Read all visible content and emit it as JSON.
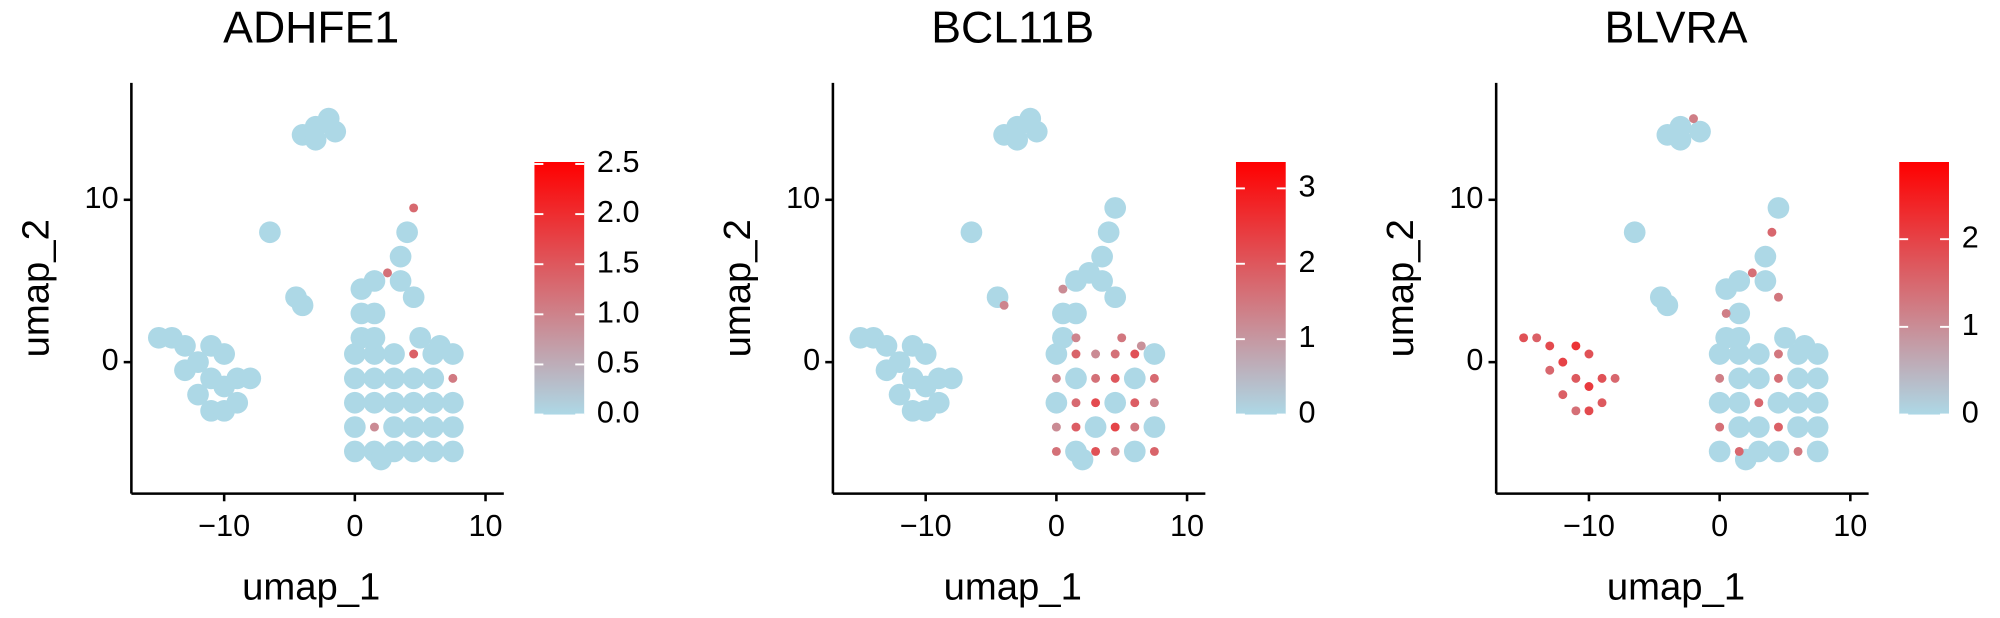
{
  "chart_data": [
    {
      "type": "scatter",
      "title": "ADHFE1",
      "x_label": "umap_1",
      "y_label": "umap_2",
      "xlim": [
        -17.1,
        11.4
      ],
      "ylim": [
        -8.1,
        17.2
      ],
      "xticks": [
        {
          "value": -10,
          "label": "−10"
        },
        0,
        10
      ],
      "yticks": [
        0,
        10
      ],
      "clim": [
        0,
        2.52
      ],
      "cticks": [
        {
          "value": 0,
          "label": "0.0"
        },
        {
          "value": 0.5,
          "label": "0.5"
        },
        {
          "value": 1,
          "label": "1.0"
        },
        {
          "value": 1.5,
          "label": "1.5"
        },
        {
          "value": 2,
          "label": "2.0"
        },
        {
          "value": 2.5,
          "label": "2.5"
        }
      ],
      "colors": [
        "#add8e6",
        "#ff0000"
      ],
      "x": [
        0,
        1.5,
        3,
        4.5,
        6,
        7.5,
        0,
        1.5,
        3,
        4.5,
        6,
        7.5,
        0,
        1.5,
        3,
        4.5,
        6,
        7.5,
        0,
        1.5,
        3,
        4.5,
        6,
        7.5,
        0,
        1.5,
        3,
        4.5,
        6,
        7.5,
        5,
        6.5,
        2,
        0.5,
        1.5,
        0.5,
        1.5,
        0.5,
        1.5,
        2.5,
        3.5,
        4.5,
        3.5,
        4,
        4.5,
        -4,
        -3,
        -2,
        -1.5,
        -3,
        -15,
        -14,
        -13,
        -13,
        -12,
        -11,
        -10,
        -9,
        -12,
        -11,
        -10,
        -9,
        -8,
        -11,
        -10,
        -6.5,
        -4.5,
        -4
      ],
      "y": [
        -5.5,
        -5.5,
        -5.5,
        -5.5,
        -5.5,
        -5.5,
        -4,
        -4,
        -4,
        -4,
        -4,
        -4,
        -2.5,
        -2.5,
        -2.5,
        -2.5,
        -2.5,
        -2.5,
        -1,
        -1,
        -1,
        -1,
        -1,
        -1,
        0.5,
        0.5,
        0.5,
        0.5,
        0.5,
        0.5,
        1.5,
        1,
        -6,
        1.5,
        1.5,
        3,
        3,
        4.5,
        5,
        5.5,
        5,
        4,
        6.5,
        8,
        9.5,
        14,
        14.5,
        15,
        14.2,
        13.7,
        1.5,
        1.5,
        1,
        -0.5,
        0,
        -1,
        -1.5,
        -1,
        -2,
        -3,
        -3,
        -2.5,
        -1,
        1,
        0.5,
        8,
        4,
        3.5
      ],
      "values": [
        0,
        0,
        0,
        0,
        0,
        0,
        0,
        0.9,
        0,
        0,
        0,
        0,
        0,
        0,
        0,
        0,
        0,
        0,
        0,
        0,
        0,
        0,
        0,
        1.1,
        0,
        0,
        0,
        1.4,
        0,
        0,
        0,
        0,
        0,
        0,
        0,
        0,
        0,
        0,
        0,
        1.2,
        0,
        0,
        0,
        0,
        1.3,
        0,
        0,
        0,
        0,
        0,
        0,
        0,
        0,
        0,
        0,
        0,
        0,
        0,
        0,
        0,
        0,
        0,
        0,
        0,
        0,
        0,
        0,
        0
      ]
    },
    {
      "type": "scatter",
      "title": "BCL11B",
      "x_label": "umap_1",
      "y_label": "umap_2",
      "xlim": [
        -17.1,
        11.4
      ],
      "ylim": [
        -8.1,
        17.2
      ],
      "xticks": [
        {
          "value": -10,
          "label": "−10"
        },
        0,
        10
      ],
      "yticks": [
        0,
        10
      ],
      "clim": [
        0,
        3.35
      ],
      "cticks": [
        0,
        1,
        2,
        3
      ],
      "colors": [
        "#add8e6",
        "#ff0000"
      ],
      "x": [
        0,
        1.5,
        3,
        4.5,
        6,
        7.5,
        0,
        1.5,
        3,
        4.5,
        6,
        7.5,
        0,
        1.5,
        3,
        4.5,
        6,
        7.5,
        0,
        1.5,
        3,
        4.5,
        6,
        7.5,
        0,
        1.5,
        3,
        4.5,
        6,
        7.5,
        5,
        6.5,
        2,
        0.5,
        1.5,
        0.5,
        1.5,
        0.5,
        1.5,
        2.5,
        3.5,
        4.5,
        3.5,
        4,
        4.5,
        -4,
        -3,
        -2,
        -1.5,
        -3,
        -15,
        -14,
        -13,
        -13,
        -12,
        -11,
        -10,
        -9,
        -12,
        -11,
        -10,
        -9,
        -8,
        -11,
        -10,
        -6.5,
        -4.5,
        -4
      ],
      "y": [
        -5.5,
        -5.5,
        -5.5,
        -5.5,
        -5.5,
        -5.5,
        -4,
        -4,
        -4,
        -4,
        -4,
        -4,
        -2.5,
        -2.5,
        -2.5,
        -2.5,
        -2.5,
        -2.5,
        -1,
        -1,
        -1,
        -1,
        -1,
        -1,
        0.5,
        0.5,
        0.5,
        0.5,
        0.5,
        0.5,
        1.5,
        1,
        -6,
        1.5,
        1.5,
        3,
        3,
        4.5,
        5,
        5.5,
        5,
        4,
        6.5,
        8,
        9.5,
        14,
        14.5,
        15,
        14.2,
        13.7,
        1.5,
        1.5,
        1,
        -0.5,
        0,
        -1,
        -1.5,
        -1,
        -2,
        -3,
        -3,
        -2.5,
        -1,
        1,
        0.5,
        8,
        4,
        3.5
      ],
      "values": [
        1.6,
        0,
        2.1,
        1.4,
        0,
        1.8,
        1.2,
        1.9,
        0,
        2.3,
        1.5,
        0,
        0,
        1.7,
        2.2,
        0,
        1.9,
        1.3,
        1.4,
        0,
        1.6,
        2,
        0,
        1.7,
        0,
        1.8,
        1.2,
        1.6,
        2.1,
        0,
        1.5,
        1.1,
        0,
        0,
        1.3,
        0,
        0,
        1.2,
        0,
        0,
        0,
        0,
        0,
        0,
        0,
        0,
        0,
        0,
        0,
        0,
        0,
        0,
        0,
        0,
        0,
        0,
        0,
        0,
        0,
        0,
        0,
        0,
        0,
        0,
        0,
        0,
        0,
        1.3
      ]
    },
    {
      "type": "scatter",
      "title": "BLVRA",
      "x_label": "umap_1",
      "y_label": "umap_2",
      "xlim": [
        -17.1,
        11.4
      ],
      "ylim": [
        -8.1,
        17.2
      ],
      "xticks": [
        {
          "value": -10,
          "label": "−10"
        },
        0,
        10
      ],
      "yticks": [
        0,
        10
      ],
      "clim": [
        0,
        2.88
      ],
      "cticks": [
        0,
        1,
        2
      ],
      "colors": [
        "#add8e6",
        "#ff0000"
      ],
      "x": [
        0,
        1.5,
        3,
        4.5,
        6,
        7.5,
        0,
        1.5,
        3,
        4.5,
        6,
        7.5,
        0,
        1.5,
        3,
        4.5,
        6,
        7.5,
        0,
        1.5,
        3,
        4.5,
        6,
        7.5,
        0,
        1.5,
        3,
        4.5,
        6,
        7.5,
        5,
        6.5,
        2,
        0.5,
        1.5,
        0.5,
        1.5,
        0.5,
        1.5,
        2.5,
        3.5,
        4.5,
        3.5,
        4,
        4.5,
        -4,
        -3,
        -2,
        -1.5,
        -3,
        -15,
        -14,
        -13,
        -13,
        -12,
        -11,
        -10,
        -9,
        -12,
        -11,
        -10,
        -9,
        -8,
        -11,
        -10,
        -6.5,
        -4.5,
        -4
      ],
      "y": [
        -5.5,
        -5.5,
        -5.5,
        -5.5,
        -5.5,
        -5.5,
        -4,
        -4,
        -4,
        -4,
        -4,
        -4,
        -2.5,
        -2.5,
        -2.5,
        -2.5,
        -2.5,
        -2.5,
        -1,
        -1,
        -1,
        -1,
        -1,
        -1,
        0.5,
        0.5,
        0.5,
        0.5,
        0.5,
        0.5,
        1.5,
        1,
        -6,
        1.5,
        1.5,
        3,
        3,
        4.5,
        5,
        5.5,
        5,
        4,
        6.5,
        8,
        9.5,
        14,
        14.5,
        15,
        14.2,
        13.7,
        1.5,
        1.5,
        1,
        -0.5,
        0,
        -1,
        -1.5,
        -1,
        -2,
        -3,
        -3,
        -2.5,
        -1,
        1,
        0.5,
        8,
        4,
        3.5
      ],
      "values": [
        0,
        1.5,
        0,
        0,
        1.3,
        0,
        1.4,
        0,
        0,
        1.6,
        0,
        0,
        0,
        0,
        1.5,
        0,
        0,
        0,
        1.2,
        0,
        0,
        1.4,
        0,
        0,
        0,
        0,
        0,
        1.3,
        0,
        0,
        0,
        0,
        0,
        0,
        0,
        1.2,
        0,
        0,
        0,
        1.4,
        0,
        1.3,
        0,
        1.5,
        0,
        0,
        0,
        1.2,
        0,
        0,
        1.8,
        1.6,
        1.9,
        1.5,
        2,
        1.7,
        2.1,
        1.8,
        1.6,
        1.4,
        1.9,
        1.7,
        1.5,
        2.2,
        1.8,
        0,
        0,
        0
      ]
    }
  ]
}
